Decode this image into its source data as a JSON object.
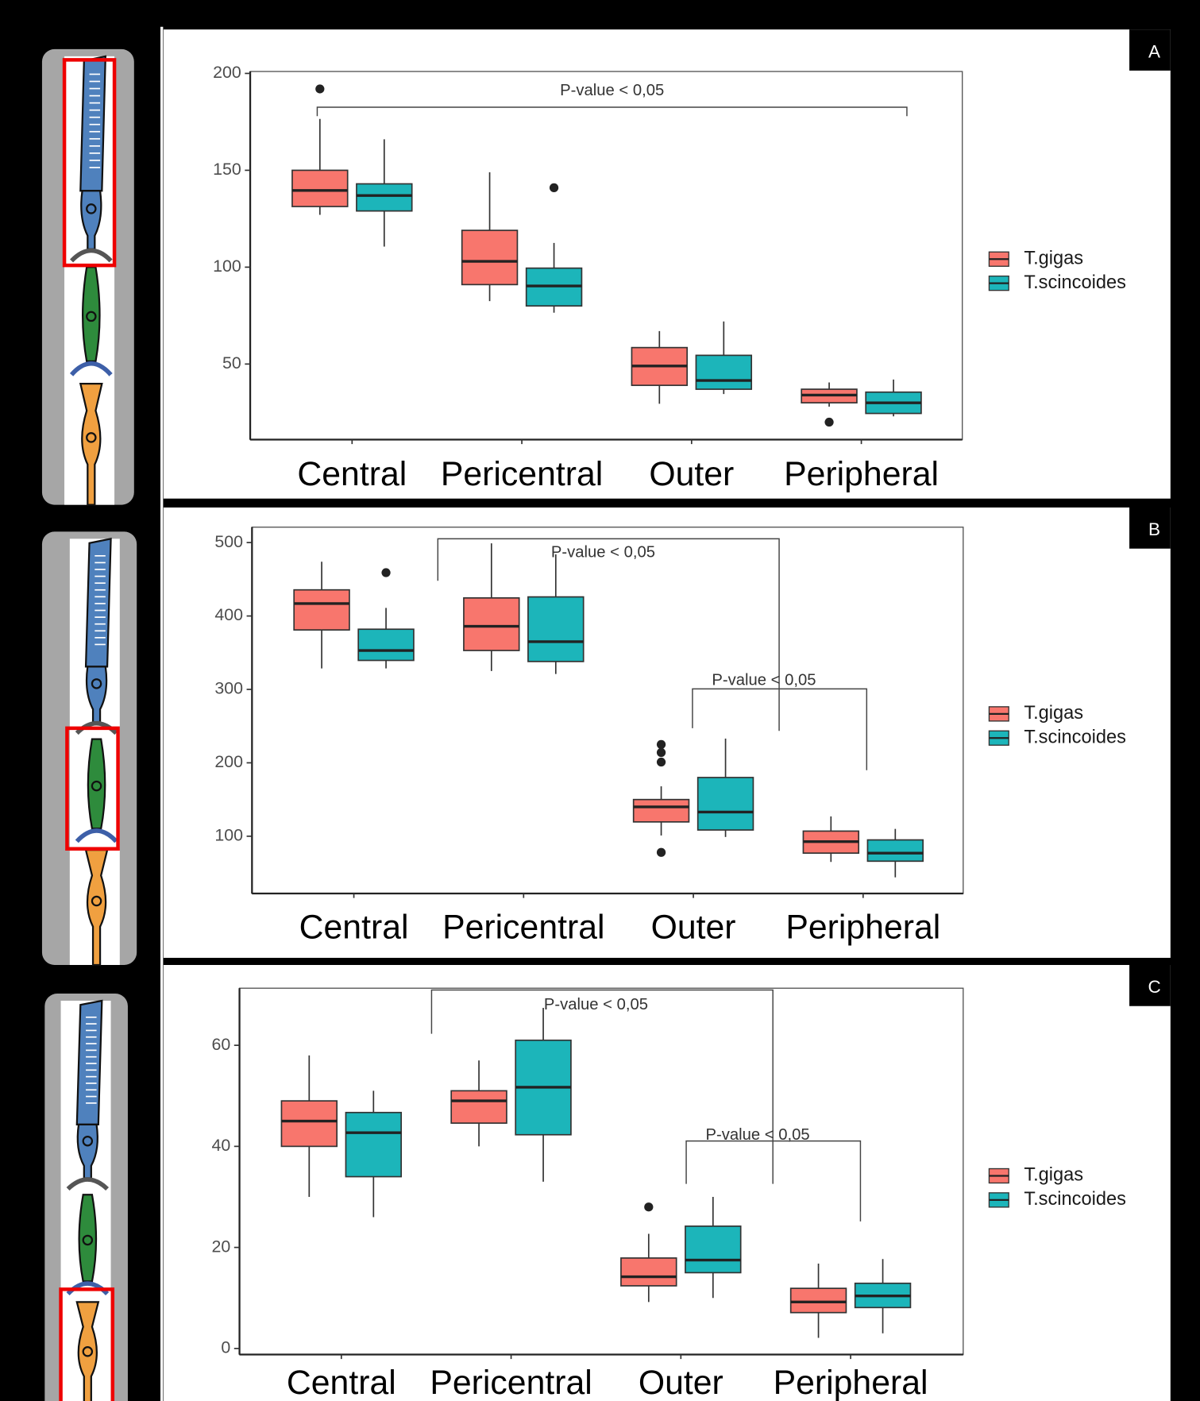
{
  "chart_data": [
    {
      "type": "box",
      "panel_label": "A",
      "categories": [
        "Central",
        "Pericentral",
        "Outer",
        "Peripheral"
      ],
      "ylim": [
        11,
        201
      ],
      "yticks": [
        50,
        100,
        150,
        200
      ],
      "annotations": [
        "P-value < 0,05"
      ],
      "series": [
        {
          "name": "T.gigas",
          "color": "#f8766d",
          "low": [
            127,
            82.5,
            29.5,
            28
          ],
          "q1": [
            131.3,
            91,
            39,
            30
          ],
          "median": [
            139.6,
            103,
            49,
            34
          ],
          "q3": [
            150,
            119,
            58.5,
            37
          ],
          "high": [
            176.5,
            149,
            67,
            40.5
          ],
          "outliers": [
            [
              192
            ],
            [],
            [],
            [
              20
            ]
          ]
        },
        {
          "name": "T.scincoides",
          "color": "#1cb5ba",
          "low": [
            110.6,
            76.5,
            34.5,
            23
          ],
          "q1": [
            129,
            80,
            37,
            24.5
          ],
          "median": [
            137,
            90.3,
            41.5,
            30
          ],
          "q3": [
            143,
            99.5,
            54.5,
            35.5
          ],
          "high": [
            166,
            112.5,
            72,
            42
          ],
          "outliers": [
            [],
            [
              141
            ],
            [],
            []
          ]
        }
      ]
    },
    {
      "type": "box",
      "panel_label": "B",
      "categories": [
        "Central",
        "Pericentral",
        "Outer",
        "Peripheral"
      ],
      "ylim": [
        22,
        521
      ],
      "yticks": [
        100,
        200,
        300,
        400,
        500
      ],
      "annotations": [
        "P-value < 0,05",
        "P-value < 0,05"
      ],
      "series": [
        {
          "name": "T.gigas",
          "color": "#f8766d",
          "low": [
            328.6,
            325,
            101,
            65
          ],
          "q1": [
            381,
            353,
            119.5,
            77
          ],
          "median": [
            417,
            386,
            140,
            92.7
          ],
          "q3": [
            435.6,
            424.6,
            150,
            107
          ],
          "high": [
            474,
            499,
            168,
            127
          ],
          "outliers": [
            [],
            [],
            [
              225,
              214,
              201,
              78
            ],
            []
          ]
        },
        {
          "name": "T.scincoides",
          "color": "#1cb5ba",
          "low": [
            328.6,
            321,
            99,
            44
          ],
          "q1": [
            339.5,
            338,
            108.5,
            66
          ],
          "median": [
            353,
            365,
            133,
            77
          ],
          "q3": [
            382,
            426,
            180,
            95
          ],
          "high": [
            411,
            484,
            233,
            110
          ],
          "outliers": [
            [
              459
            ],
            [],
            [],
            []
          ]
        }
      ]
    },
    {
      "type": "box",
      "panel_label": "C",
      "categories": [
        "Central",
        "Pericentral",
        "Outer",
        "Peripheral"
      ],
      "ylim": [
        -1.2,
        71.3
      ],
      "yticks": [
        0,
        20,
        40,
        60
      ],
      "annotations": [
        "P-value < 0,05",
        "P-value < 0,05"
      ],
      "series": [
        {
          "name": "T.gigas",
          "color": "#f8766d",
          "low": [
            30,
            40,
            9.2,
            2.1
          ],
          "q1": [
            40,
            44.6,
            12.4,
            7.1
          ],
          "median": [
            45,
            49,
            14.2,
            9.2
          ],
          "q3": [
            49,
            51,
            17.9,
            11.9
          ],
          "high": [
            58,
            57,
            22.7,
            16.8
          ],
          "outliers": [
            [],
            [],
            [
              28
            ],
            []
          ]
        },
        {
          "name": "T.scincoides",
          "color": "#1cb5ba",
          "low": [
            26,
            33,
            10,
            3
          ],
          "q1": [
            34,
            42.3,
            15,
            8.1
          ],
          "median": [
            42.7,
            51.7,
            17.5,
            10.4
          ],
          "q3": [
            46.7,
            61,
            24.2,
            12.9
          ],
          "high": [
            51,
            67.4,
            30,
            17.7
          ],
          "outliers": [
            [],
            [],
            [],
            []
          ]
        }
      ]
    }
  ]
}
